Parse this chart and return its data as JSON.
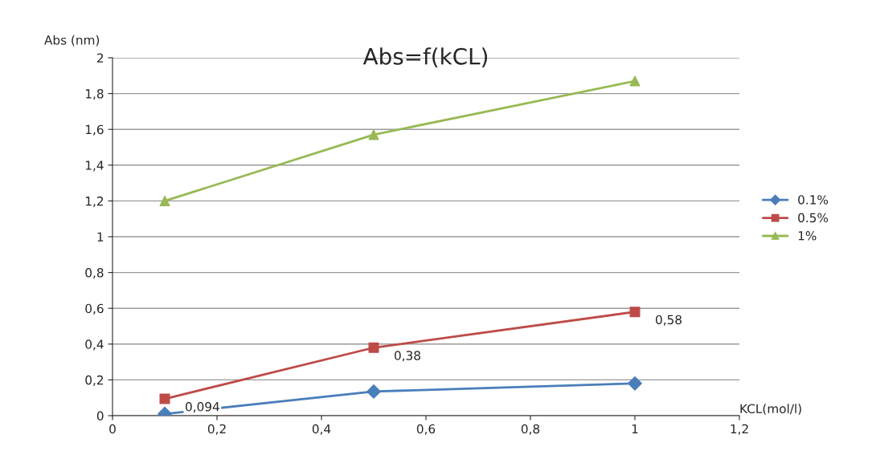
{
  "chart_data": {
    "type": "line",
    "title": "Abs=f(kCL)",
    "xlabel": "KCL(mol/l)",
    "ylabel": "Abs (nm)",
    "x": [
      0.1,
      0.5,
      1
    ],
    "series": [
      {
        "name": "0.1%",
        "color": "#4a7ebb",
        "marker": "diamond",
        "values": [
          0.01,
          0.135,
          0.18
        ]
      },
      {
        "name": "0.5%",
        "color": "#be4b48",
        "marker": "square",
        "values": [
          0.094,
          0.38,
          0.58
        ],
        "value_labels": [
          "0,094",
          "0,38",
          "0,58"
        ]
      },
      {
        "name": "1%",
        "color": "#98b954",
        "marker": "triangle",
        "values": [
          1.2,
          1.57,
          1.87
        ]
      }
    ],
    "xlim": [
      0,
      1.2
    ],
    "xticks": [
      0,
      {
        "value": 0.2,
        "label": "0,2"
      },
      {
        "value": 0.4,
        "label": "0,4"
      },
      {
        "value": 0.6,
        "label": "0,6"
      },
      {
        "value": 0.8,
        "label": "0,8"
      },
      1,
      {
        "value": 1.2,
        "label": "1,2"
      }
    ],
    "ylim": [
      0,
      2
    ],
    "yticks": [
      0,
      {
        "value": 0.2,
        "label": "0,2"
      },
      {
        "value": 0.4,
        "label": "0,4"
      },
      {
        "value": 0.6,
        "label": "0,6"
      },
      {
        "value": 0.8,
        "label": "0,8"
      },
      1,
      {
        "value": 1.2,
        "label": "1,2"
      },
      {
        "value": 1.4,
        "label": "1,4"
      },
      {
        "value": 1.6,
        "label": "1,6"
      },
      {
        "value": 1.8,
        "label": "1,8"
      },
      2
    ],
    "grid": "y",
    "legend": "right",
    "line_style": "solid"
  }
}
